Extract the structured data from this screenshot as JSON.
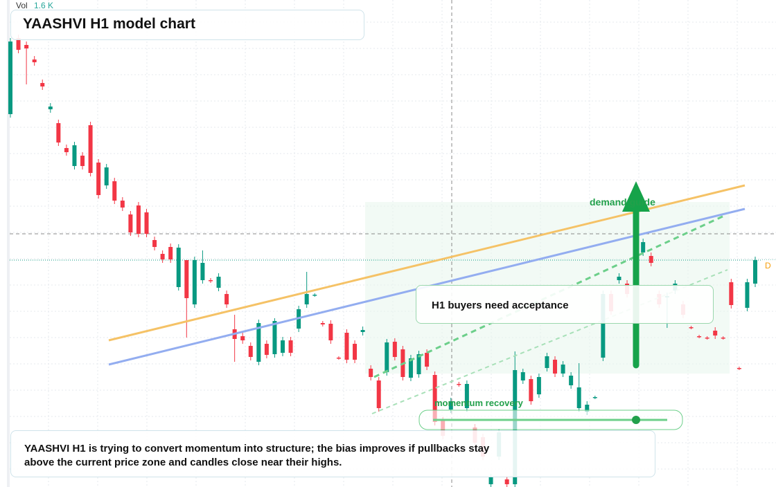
{
  "chart_data": {
    "type": "candlestick",
    "title": "YAASHVI H1 model chart",
    "volume_label": "Vol",
    "volume_value": "1.6 K",
    "annotations": {
      "zone": "demand guide",
      "callout": "H1 buyers need acceptance",
      "slider": "momentum recovery",
      "marker": "D"
    },
    "note": "YAASHVI H1 is trying to convert momentum into structure; the bias improves if pullbacks stay above the current price zone and candles close near their highs.",
    "up_color": "#089981",
    "down_color": "#f23645",
    "ylim": [
      0,
      704
    ],
    "candles": [
      [
        539,
        649,
        534,
        644
      ],
      [
        649,
        654,
        627,
        632
      ],
      [
        639,
        644,
        582,
        634
      ],
      [
        618,
        623,
        609,
        614
      ],
      [
        584,
        589,
        574,
        579
      ],
      [
        546,
        555,
        541,
        550
      ],
      [
        526,
        531,
        493,
        498
      ],
      [
        490,
        495,
        479,
        484
      ],
      [
        464,
        499,
        459,
        494
      ],
      [
        479,
        484,
        459,
        464
      ],
      [
        523,
        528,
        449,
        454
      ],
      [
        469,
        474,
        417,
        422
      ],
      [
        436,
        467,
        431,
        462
      ],
      [
        442,
        447,
        409,
        414
      ],
      [
        414,
        419,
        399,
        404
      ],
      [
        394,
        399,
        363,
        368
      ],
      [
        407,
        412,
        361,
        366
      ],
      [
        397,
        402,
        361,
        366
      ],
      [
        357,
        362,
        342,
        347
      ],
      [
        337,
        342,
        324,
        329
      ],
      [
        347,
        352,
        324,
        329
      ],
      [
        289,
        351,
        284,
        346
      ],
      [
        328,
        328,
        216,
        273
      ],
      [
        264,
        333,
        259,
        328
      ],
      [
        299,
        342,
        294,
        324
      ],
      [
        299,
        302,
        295,
        298
      ],
      [
        288,
        309,
        283,
        304
      ],
      [
        279,
        284,
        259,
        264
      ],
      [
        228,
        249,
        181,
        214
      ],
      [
        218,
        223,
        207,
        212
      ],
      [
        204,
        209,
        183,
        188
      ],
      [
        181,
        242,
        176,
        237
      ],
      [
        207,
        212,
        186,
        191
      ],
      [
        192,
        244,
        187,
        240
      ],
      [
        194,
        217,
        189,
        212
      ],
      [
        212,
        217,
        189,
        194
      ],
      [
        229,
        262,
        224,
        257
      ],
      [
        264,
        311,
        259,
        279
      ],
      [
        277,
        280,
        275,
        278
      ],
      [
        237,
        240,
        232,
        235
      ],
      [
        236,
        241,
        207,
        212
      ],
      [
        187,
        189,
        184,
        186
      ],
      [
        223,
        228,
        179,
        184
      ],
      [
        207,
        212,
        179,
        184
      ],
      [
        224,
        232,
        219,
        227
      ],
      [
        171,
        176,
        154,
        159
      ],
      [
        154,
        159,
        109,
        114
      ],
      [
        166,
        214,
        161,
        209
      ],
      [
        210,
        215,
        183,
        188
      ],
      [
        199,
        204,
        154,
        159
      ],
      [
        158,
        191,
        153,
        186
      ],
      [
        163,
        197,
        158,
        192
      ],
      [
        194,
        199,
        169,
        174
      ],
      [
        162,
        167,
        89,
        94
      ],
      [
        96,
        101,
        69,
        74
      ],
      [
        112,
        129,
        107,
        124
      ],
      [
        149,
        152,
        145,
        148
      ],
      [
        114,
        154,
        109,
        149
      ],
      [
        86,
        91,
        59,
        64
      ],
      [
        72,
        77,
        39,
        44
      ],
      [
        4,
        19,
        0,
        14
      ],
      [
        44,
        84,
        39,
        79
      ],
      [
        11,
        16,
        0,
        4
      ],
      [
        4,
        196,
        0,
        169
      ],
      [
        154,
        171,
        149,
        166
      ],
      [
        156,
        161,
        119,
        124
      ],
      [
        134,
        164,
        129,
        159
      ],
      [
        172,
        194,
        167,
        189
      ],
      [
        184,
        189,
        159,
        164
      ],
      [
        164,
        182,
        159,
        177
      ],
      [
        147,
        166,
        142,
        161
      ],
      [
        114,
        179,
        109,
        144
      ],
      [
        109,
        124,
        104,
        119
      ],
      [
        129,
        132,
        127,
        130
      ],
      [
        187,
        284,
        182,
        279
      ],
      [
        279,
        284,
        249,
        254
      ],
      [
        299,
        309,
        294,
        304
      ],
      [
        294,
        299,
        274,
        279
      ],
      [
        314,
        399,
        309,
        394
      ],
      [
        339,
        359,
        334,
        354
      ],
      [
        334,
        339,
        319,
        324
      ],
      [
        279,
        284,
        259,
        264
      ],
      [
        274,
        281,
        230,
        276
      ],
      [
        284,
        299,
        279,
        294
      ],
      [
        264,
        269,
        244,
        249
      ],
      [
        231,
        233,
        228,
        230
      ],
      [
        218,
        220,
        215,
        217
      ],
      [
        216,
        218,
        213,
        215
      ],
      [
        226,
        231,
        214,
        219
      ],
      [
        216,
        218,
        213,
        215
      ],
      [
        296,
        301,
        258,
        263
      ],
      [
        172,
        174,
        169,
        171
      ],
      [
        259,
        301,
        254,
        296
      ],
      [
        294,
        333,
        289,
        328
      ]
    ]
  }
}
